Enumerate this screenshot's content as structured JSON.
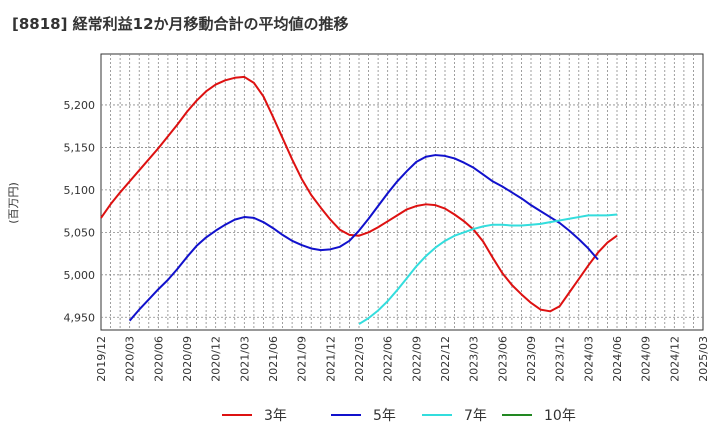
{
  "chart_data": {
    "type": "line",
    "title": "[8818]  経常利益12か月移動合計の平均値の推移",
    "ylabel": "(百万円)",
    "xlabel": "",
    "ylim": [
      4935,
      5260
    ],
    "y_ticks": [
      "4,950",
      "5,000",
      "5,050",
      "5,100",
      "5,150",
      "5,200"
    ],
    "y_tick_values": [
      4950,
      5000,
      5050,
      5100,
      5150,
      5200
    ],
    "x_ticks": [
      "2019/12",
      "2020/03",
      "2020/06",
      "2020/09",
      "2020/12",
      "2021/03",
      "2021/06",
      "2021/09",
      "2021/12",
      "2022/03",
      "2022/06",
      "2022/09",
      "2022/12",
      "2023/03",
      "2023/06",
      "2023/09",
      "2023/12",
      "2024/03",
      "2024/06",
      "2024/09",
      "2024/12",
      "2025/03"
    ],
    "x_range": [
      "2019/12",
      "2025/03"
    ],
    "grid": true,
    "legend_position": "bottom",
    "series": [
      {
        "name": "3年",
        "color": "#dd1111",
        "points": [
          [
            "2019/12",
            5067
          ],
          [
            "2020/01",
            5083
          ],
          [
            "2020/02",
            5097
          ],
          [
            "2020/03",
            5110
          ],
          [
            "2020/04",
            5123
          ],
          [
            "2020/05",
            5136
          ],
          [
            "2020/06",
            5149
          ],
          [
            "2020/07",
            5163
          ],
          [
            "2020/08",
            5177
          ],
          [
            "2020/09",
            5192
          ],
          [
            "2020/10",
            5205
          ],
          [
            "2020/11",
            5216
          ],
          [
            "2020/12",
            5224
          ],
          [
            "2021/01",
            5229
          ],
          [
            "2021/02",
            5232
          ],
          [
            "2021/03",
            5233
          ],
          [
            "2021/04",
            5226
          ],
          [
            "2021/05",
            5210
          ],
          [
            "2021/06",
            5186
          ],
          [
            "2021/07",
            5161
          ],
          [
            "2021/08",
            5136
          ],
          [
            "2021/09",
            5113
          ],
          [
            "2021/10",
            5094
          ],
          [
            "2021/11",
            5079
          ],
          [
            "2021/12",
            5065
          ],
          [
            "2022/01",
            5053
          ],
          [
            "2022/02",
            5047
          ],
          [
            "2022/03",
            5046
          ],
          [
            "2022/04",
            5050
          ],
          [
            "2022/05",
            5056
          ],
          [
            "2022/06",
            5063
          ],
          [
            "2022/07",
            5070
          ],
          [
            "2022/08",
            5077
          ],
          [
            "2022/09",
            5081
          ],
          [
            "2022/10",
            5083
          ],
          [
            "2022/11",
            5082
          ],
          [
            "2022/12",
            5078
          ],
          [
            "2023/01",
            5071
          ],
          [
            "2023/02",
            5063
          ],
          [
            "2023/03",
            5053
          ],
          [
            "2023/04",
            5039
          ],
          [
            "2023/05",
            5020
          ],
          [
            "2023/06",
            5002
          ],
          [
            "2023/07",
            4988
          ],
          [
            "2023/08",
            4977
          ],
          [
            "2023/09",
            4967
          ],
          [
            "2023/10",
            4959
          ],
          [
            "2023/11",
            4957
          ],
          [
            "2023/12",
            4963
          ],
          [
            "2024/01",
            4979
          ],
          [
            "2024/02",
            4995
          ],
          [
            "2024/03",
            5011
          ],
          [
            "2024/04",
            5026
          ],
          [
            "2024/05",
            5038
          ],
          [
            "2024/06",
            5046
          ]
        ]
      },
      {
        "name": "5年",
        "color": "#1111cc",
        "points": [
          [
            "2020/03",
            4946
          ],
          [
            "2020/04",
            4959
          ],
          [
            "2020/05",
            4971
          ],
          [
            "2020/06",
            4983
          ],
          [
            "2020/07",
            4994
          ],
          [
            "2020/08",
            5007
          ],
          [
            "2020/09",
            5021
          ],
          [
            "2020/10",
            5034
          ],
          [
            "2020/11",
            5044
          ],
          [
            "2020/12",
            5052
          ],
          [
            "2021/01",
            5059
          ],
          [
            "2021/02",
            5065
          ],
          [
            "2021/03",
            5068
          ],
          [
            "2021/04",
            5067
          ],
          [
            "2021/05",
            5062
          ],
          [
            "2021/06",
            5055
          ],
          [
            "2021/07",
            5047
          ],
          [
            "2021/08",
            5040
          ],
          [
            "2021/09",
            5035
          ],
          [
            "2021/10",
            5031
          ],
          [
            "2021/11",
            5029
          ],
          [
            "2021/12",
            5030
          ],
          [
            "2022/01",
            5033
          ],
          [
            "2022/02",
            5040
          ],
          [
            "2022/03",
            5052
          ],
          [
            "2022/04",
            5066
          ],
          [
            "2022/05",
            5081
          ],
          [
            "2022/06",
            5096
          ],
          [
            "2022/07",
            5110
          ],
          [
            "2022/08",
            5122
          ],
          [
            "2022/09",
            5133
          ],
          [
            "2022/10",
            5139
          ],
          [
            "2022/11",
            5141
          ],
          [
            "2022/12",
            5140
          ],
          [
            "2023/01",
            5137
          ],
          [
            "2023/02",
            5132
          ],
          [
            "2023/03",
            5126
          ],
          [
            "2023/04",
            5118
          ],
          [
            "2023/05",
            5110
          ],
          [
            "2023/06",
            5104
          ],
          [
            "2023/07",
            5097
          ],
          [
            "2023/08",
            5090
          ],
          [
            "2023/09",
            5082
          ],
          [
            "2023/10",
            5075
          ],
          [
            "2023/11",
            5068
          ],
          [
            "2023/12",
            5061
          ],
          [
            "2024/01",
            5052
          ],
          [
            "2024/02",
            5042
          ],
          [
            "2024/03",
            5031
          ],
          [
            "2024/04",
            5018
          ]
        ]
      },
      {
        "name": "7年",
        "color": "#33dddd",
        "points": [
          [
            "2022/03",
            4942
          ],
          [
            "2022/04",
            4949
          ],
          [
            "2022/05",
            4958
          ],
          [
            "2022/06",
            4969
          ],
          [
            "2022/07",
            4982
          ],
          [
            "2022/08",
            4996
          ],
          [
            "2022/09",
            5010
          ],
          [
            "2022/10",
            5022
          ],
          [
            "2022/11",
            5032
          ],
          [
            "2022/12",
            5040
          ],
          [
            "2023/01",
            5046
          ],
          [
            "2023/02",
            5050
          ],
          [
            "2023/03",
            5054
          ],
          [
            "2023/04",
            5057
          ],
          [
            "2023/05",
            5059
          ],
          [
            "2023/06",
            5059
          ],
          [
            "2023/07",
            5058
          ],
          [
            "2023/08",
            5058
          ],
          [
            "2023/09",
            5059
          ],
          [
            "2023/10",
            5060
          ],
          [
            "2023/11",
            5062
          ],
          [
            "2023/12",
            5064
          ],
          [
            "2024/01",
            5066
          ],
          [
            "2024/02",
            5068
          ],
          [
            "2024/03",
            5070
          ],
          [
            "2024/04",
            5070
          ],
          [
            "2024/05",
            5070
          ],
          [
            "2024/06",
            5071
          ]
        ]
      },
      {
        "name": "10年",
        "color": "#228822",
        "points": []
      }
    ]
  }
}
